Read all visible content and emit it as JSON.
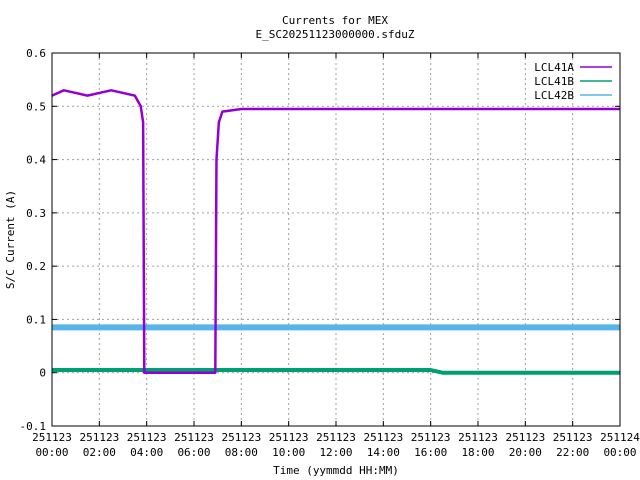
{
  "chart_data": {
    "type": "line",
    "title": "Currents for MEX",
    "subtitle": "E_SC20251123000000.sfduZ",
    "xlabel": "Time (yymmdd HH:MM)",
    "ylabel": "S/C Current (A)",
    "xlim_hours": [
      0,
      24
    ],
    "ylim": [
      -0.1,
      0.6
    ],
    "yticks": [
      -0.1,
      0,
      0.1,
      0.2,
      0.3,
      0.4,
      0.5,
      0.6
    ],
    "xticks": [
      {
        "date": "251123",
        "time": "00:00",
        "hour": 0
      },
      {
        "date": "251123",
        "time": "02:00",
        "hour": 2
      },
      {
        "date": "251123",
        "time": "04:00",
        "hour": 4
      },
      {
        "date": "251123",
        "time": "06:00",
        "hour": 6
      },
      {
        "date": "251123",
        "time": "08:00",
        "hour": 8
      },
      {
        "date": "251123",
        "time": "10:00",
        "hour": 10
      },
      {
        "date": "251123",
        "time": "12:00",
        "hour": 12
      },
      {
        "date": "251123",
        "time": "14:00",
        "hour": 14
      },
      {
        "date": "251123",
        "time": "16:00",
        "hour": 16
      },
      {
        "date": "251123",
        "time": "18:00",
        "hour": 18
      },
      {
        "date": "251123",
        "time": "20:00",
        "hour": 20
      },
      {
        "date": "251123",
        "time": "22:00",
        "hour": 22
      },
      {
        "date": "251124",
        "time": "00:00",
        "hour": 24
      }
    ],
    "grid": true,
    "legend_position": "top-right",
    "series": [
      {
        "name": "LCL41A",
        "color": "#9400d3",
        "points": [
          [
            0,
            0.52
          ],
          [
            0.5,
            0.53
          ],
          [
            1,
            0.525
          ],
          [
            1.5,
            0.52
          ],
          [
            2,
            0.525
          ],
          [
            2.5,
            0.53
          ],
          [
            3,
            0.525
          ],
          [
            3.5,
            0.52
          ],
          [
            3.75,
            0.5
          ],
          [
            3.85,
            0.47
          ],
          [
            3.9,
            0.0
          ],
          [
            5,
            0.0
          ],
          [
            6,
            0.0
          ],
          [
            6.9,
            0.0
          ],
          [
            6.95,
            0.4
          ],
          [
            7.05,
            0.47
          ],
          [
            7.2,
            0.49
          ],
          [
            8,
            0.495
          ],
          [
            10,
            0.495
          ],
          [
            12,
            0.495
          ],
          [
            14,
            0.495
          ],
          [
            16,
            0.495
          ],
          [
            18,
            0.495
          ],
          [
            20,
            0.495
          ],
          [
            22,
            0.495
          ],
          [
            24,
            0.495
          ]
        ]
      },
      {
        "name": "LCL41B",
        "color": "#009e73",
        "points": [
          [
            0,
            0.005
          ],
          [
            4,
            0.005
          ],
          [
            8,
            0.005
          ],
          [
            12,
            0.005
          ],
          [
            16,
            0.005
          ],
          [
            16.5,
            0.0
          ],
          [
            24,
            0.0
          ]
        ]
      },
      {
        "name": "LCL42B",
        "color": "#56b4e9",
        "points": [
          [
            0,
            0.085
          ],
          [
            6,
            0.085
          ],
          [
            12,
            0.085
          ],
          [
            18,
            0.085
          ],
          [
            24,
            0.085
          ]
        ]
      }
    ]
  }
}
